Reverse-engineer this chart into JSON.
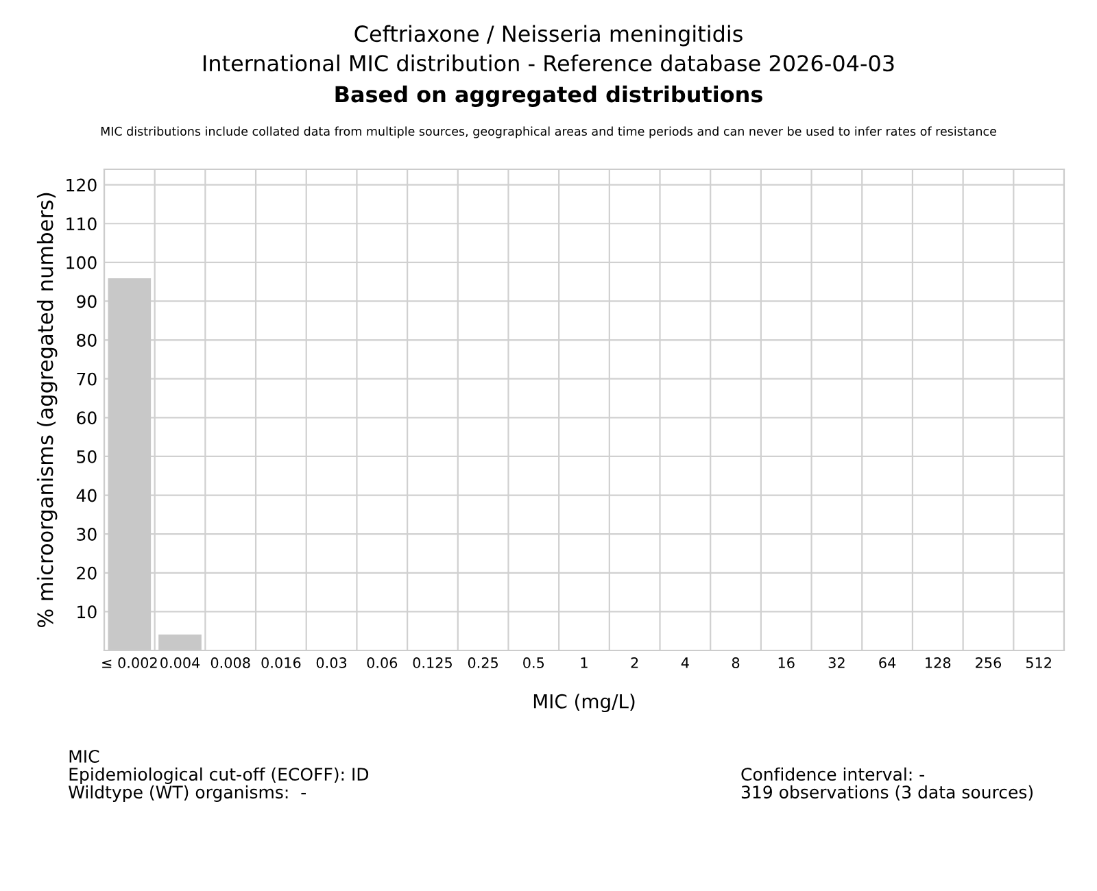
{
  "chart_data": {
    "type": "bar",
    "title": "Ceftriaxone / Neisseria meningitidis\nInternational MIC distribution - Reference database 2026-04-03",
    "subtitle": "Based on aggregated distributions",
    "xlabel": "MIC (mg/L)",
    "ylabel": "% microorganisms (aggregated numbers)",
    "categories": [
      "≤ 0.002",
      "0.004",
      "0.008",
      "0.016",
      "0.03",
      "0.06",
      "0.125",
      "0.25",
      "0.5",
      "1",
      "2",
      "4",
      "8",
      "16",
      "32",
      "64",
      "128",
      "256",
      "512"
    ],
    "values": [
      95.9,
      4.1,
      0,
      0,
      0,
      0,
      0,
      0,
      0,
      0,
      0,
      0,
      0,
      0,
      0,
      0,
      0,
      0,
      0
    ],
    "color": "#c8c8c8",
    "ylim": [
      0,
      124
    ],
    "yticks": [
      10,
      20,
      30,
      40,
      50,
      60,
      70,
      80,
      90,
      100,
      110,
      120
    ],
    "grid": true,
    "annotations": [
      "MIC distributions include collated data from multiple sources, geographical areas and time periods and can never be used to infer rates of resistance",
      "MIC\nEpidemiological cut-off (ECOFF): ID\nWildtype (WT) organisms:  -",
      "Confidence interval: -\n319 observations (3 data sources)"
    ]
  }
}
